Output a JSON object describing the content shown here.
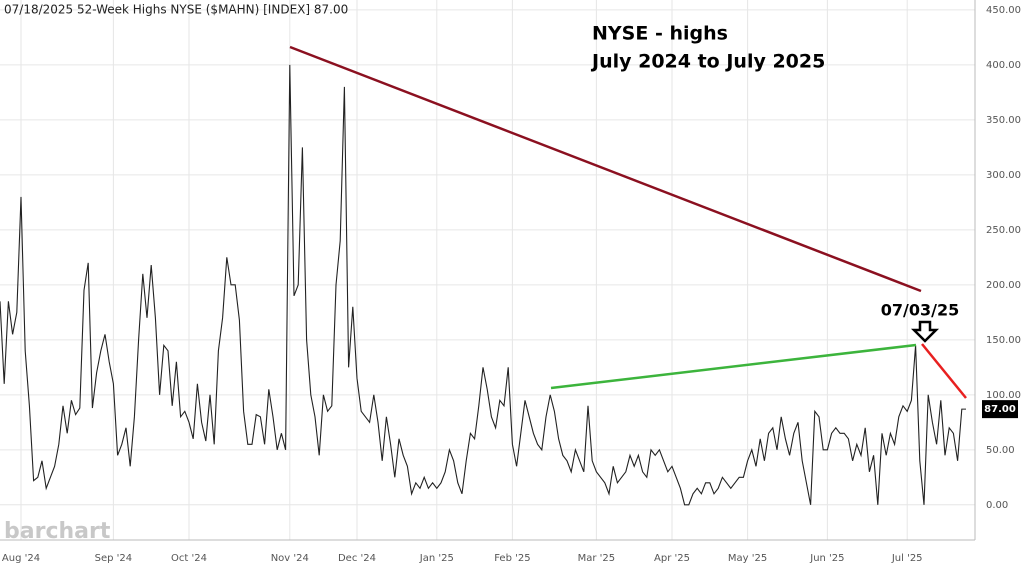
{
  "chart_data": {
    "type": "line",
    "title": "07/18/2025 52-Week Highs NYSE ($MAHN) [INDEX] 87.00",
    "annotations": [
      "NYSE - highs",
      "July 2024 to July 2025",
      "07/03/25"
    ],
    "watermark": "barchart",
    "last_value_label": "87.00",
    "color": "#222222",
    "grid": true,
    "ylim": [
      -32,
      459
    ],
    "yticks": [
      {
        "value": 0,
        "label": "0.00"
      },
      {
        "value": 50,
        "label": "50.00"
      },
      {
        "value": 100,
        "label": "100.00"
      },
      {
        "value": 150,
        "label": "150.00"
      },
      {
        "value": 200,
        "label": "200.00"
      },
      {
        "value": 250,
        "label": "250.00"
      },
      {
        "value": 300,
        "label": "300.00"
      },
      {
        "value": 350,
        "label": "350.00"
      },
      {
        "value": 400,
        "label": "400.00"
      },
      {
        "value": 450,
        "label": "450.00"
      }
    ],
    "categories": [
      null,
      null,
      null,
      null,
      null,
      "Aug '24",
      null,
      null,
      null,
      null,
      null,
      null,
      null,
      null,
      null,
      null,
      null,
      null,
      null,
      null,
      null,
      null,
      null,
      null,
      null,
      null,
      null,
      "Sep '24",
      null,
      null,
      null,
      null,
      null,
      null,
      null,
      null,
      null,
      null,
      null,
      null,
      null,
      null,
      null,
      null,
      null,
      "Oct '24",
      null,
      null,
      null,
      null,
      null,
      null,
      null,
      null,
      null,
      null,
      null,
      null,
      null,
      null,
      null,
      null,
      null,
      null,
      null,
      null,
      null,
      null,
      null,
      "Nov '24",
      null,
      null,
      null,
      null,
      null,
      null,
      null,
      null,
      null,
      null,
      null,
      null,
      null,
      null,
      null,
      "Dec '24",
      null,
      null,
      null,
      null,
      null,
      null,
      null,
      null,
      null,
      null,
      null,
      null,
      null,
      null,
      null,
      null,
      null,
      null,
      "Jan '25",
      null,
      null,
      null,
      null,
      null,
      null,
      null,
      null,
      null,
      null,
      null,
      null,
      null,
      null,
      null,
      null,
      null,
      "Feb '25",
      null,
      null,
      null,
      null,
      null,
      null,
      null,
      null,
      null,
      null,
      null,
      null,
      null,
      null,
      null,
      null,
      null,
      null,
      null,
      "Mar '25",
      null,
      null,
      null,
      null,
      null,
      null,
      null,
      null,
      null,
      null,
      null,
      null,
      null,
      null,
      null,
      null,
      null,
      "Apr '25",
      null,
      null,
      null,
      null,
      null,
      null,
      null,
      null,
      null,
      null,
      null,
      null,
      null,
      null,
      null,
      null,
      null,
      "May '25",
      null,
      null,
      null,
      null,
      null,
      null,
      null,
      null,
      null,
      null,
      null,
      null,
      null,
      null,
      null,
      null,
      null,
      null,
      "Jun '25",
      null,
      null,
      null,
      null,
      null,
      null,
      null,
      null,
      null,
      null,
      null,
      null,
      null,
      null,
      null,
      null,
      null,
      null,
      "Jul '25",
      null,
      null,
      null,
      null,
      null,
      null,
      null,
      null,
      null,
      null,
      null,
      null,
      null,
      null
    ],
    "values": [
      185,
      110,
      185,
      155,
      175,
      280,
      140,
      90,
      22,
      25,
      40,
      15,
      25,
      35,
      55,
      90,
      65,
      95,
      82,
      88,
      195,
      220,
      88,
      120,
      140,
      155,
      130,
      110,
      45,
      55,
      70,
      35,
      80,
      150,
      210,
      170,
      218,
      170,
      100,
      145,
      140,
      90,
      130,
      80,
      85,
      75,
      60,
      110,
      75,
      58,
      100,
      55,
      140,
      170,
      225,
      200,
      200,
      168,
      85,
      55,
      55,
      82,
      80,
      55,
      105,
      80,
      50,
      65,
      50,
      400,
      190,
      200,
      325,
      150,
      100,
      80,
      45,
      100,
      85,
      90,
      200,
      240,
      380,
      125,
      180,
      115,
      85,
      80,
      75,
      100,
      75,
      40,
      80,
      55,
      25,
      60,
      45,
      35,
      10,
      20,
      15,
      25,
      15,
      20,
      15,
      20,
      30,
      50,
      40,
      20,
      10,
      40,
      65,
      60,
      90,
      125,
      105,
      80,
      70,
      95,
      90,
      125,
      55,
      35,
      65,
      95,
      80,
      65,
      55,
      50,
      80,
      100,
      85,
      60,
      45,
      40,
      30,
      50,
      40,
      30,
      90,
      40,
      30,
      25,
      20,
      10,
      35,
      20,
      25,
      30,
      45,
      35,
      45,
      30,
      25,
      50,
      45,
      50,
      40,
      30,
      35,
      25,
      15,
      0,
      0,
      10,
      15,
      10,
      20,
      20,
      10,
      15,
      25,
      20,
      15,
      20,
      25,
      25,
      40,
      50,
      35,
      60,
      40,
      65,
      70,
      50,
      80,
      60,
      45,
      65,
      75,
      40,
      20,
      0,
      85,
      80,
      50,
      50,
      65,
      70,
      65,
      65,
      60,
      40,
      55,
      45,
      70,
      30,
      45,
      0,
      65,
      45,
      65,
      55,
      80,
      90,
      85,
      95,
      145,
      40,
      0,
      100,
      75,
      55,
      95,
      45,
      70,
      65,
      40,
      87,
      87
    ]
  }
}
